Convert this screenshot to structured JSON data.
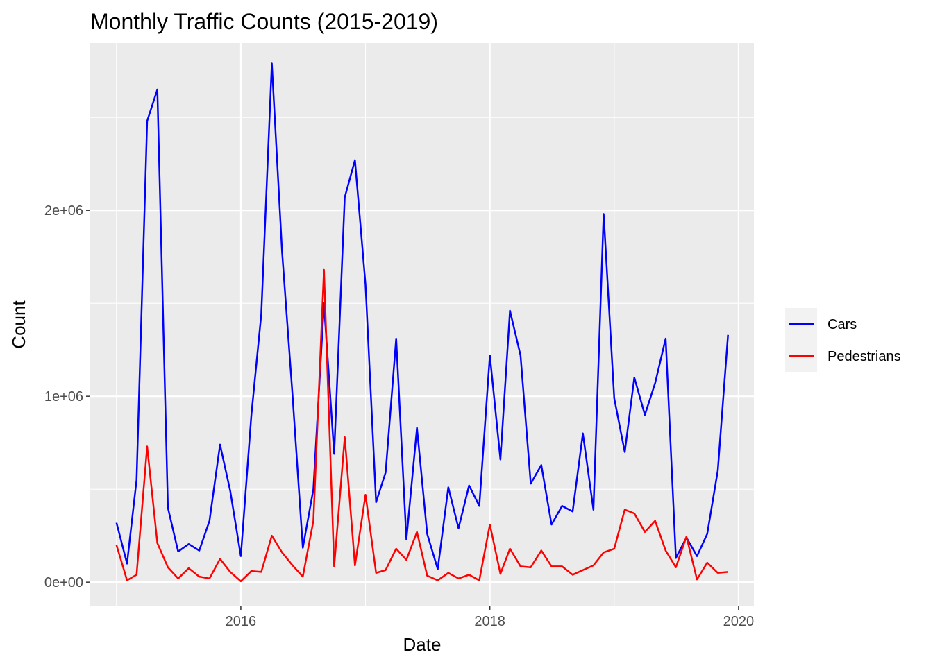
{
  "chart_data": {
    "type": "line",
    "title": "Monthly Traffic Counts (2015-2019)",
    "xlabel": "Date",
    "ylabel": "Count",
    "x_ticks": [
      "2016",
      "2018",
      "2020"
    ],
    "y_ticks": [
      "0e+00",
      "1e+06",
      "2e+06"
    ],
    "xlim": [
      "2014-10-16",
      "2020-02-15"
    ],
    "ylim": [
      -130000,
      2900000
    ],
    "grid": true,
    "legend_position": "right",
    "x": [
      "2015-01",
      "2015-02",
      "2015-03",
      "2015-04",
      "2015-05",
      "2015-06",
      "2015-07",
      "2015-08",
      "2015-09",
      "2015-10",
      "2015-11",
      "2015-12",
      "2016-01",
      "2016-02",
      "2016-03",
      "2016-04",
      "2016-05",
      "2016-06",
      "2016-07",
      "2016-08",
      "2016-09",
      "2016-10",
      "2016-11",
      "2016-12",
      "2017-01",
      "2017-02",
      "2017-03",
      "2017-04",
      "2017-05",
      "2017-06",
      "2017-07",
      "2017-08",
      "2017-09",
      "2017-10",
      "2017-11",
      "2017-12",
      "2018-01",
      "2018-02",
      "2018-03",
      "2018-04",
      "2018-05",
      "2018-06",
      "2018-07",
      "2018-08",
      "2018-09",
      "2018-10",
      "2018-11",
      "2018-12",
      "2019-01",
      "2019-02",
      "2019-03",
      "2019-04",
      "2019-05",
      "2019-06",
      "2019-07",
      "2019-08",
      "2019-09",
      "2019-10",
      "2019-11",
      "2019-12"
    ],
    "series": [
      {
        "name": "Cars",
        "color": "#0000ff",
        "values": [
          320000,
          100000,
          550000,
          2480000,
          2650000,
          400000,
          165000,
          205000,
          170000,
          330000,
          740000,
          490000,
          140000,
          900000,
          1440000,
          2790000,
          1780000,
          1000000,
          185000,
          500000,
          1500000,
          690000,
          2070000,
          2270000,
          1600000,
          430000,
          590000,
          1310000,
          230000,
          830000,
          260000,
          70000,
          510000,
          290000,
          520000,
          410000,
          1220000,
          660000,
          1460000,
          1220000,
          530000,
          630000,
          310000,
          410000,
          380000,
          800000,
          390000,
          1980000,
          990000,
          700000,
          1100000,
          900000,
          1070000,
          1310000,
          130000,
          240000,
          140000,
          260000,
          600000,
          1330000
        ]
      },
      {
        "name": "Pedestrians",
        "color": "#ff0000",
        "values": [
          200000,
          10000,
          40000,
          730000,
          210000,
          80000,
          20000,
          75000,
          30000,
          20000,
          125000,
          55000,
          5000,
          60000,
          55000,
          250000,
          160000,
          90000,
          30000,
          330000,
          1680000,
          85000,
          780000,
          90000,
          470000,
          50000,
          65000,
          180000,
          120000,
          270000,
          35000,
          10000,
          50000,
          20000,
          40000,
          10000,
          310000,
          45000,
          180000,
          85000,
          80000,
          170000,
          85000,
          85000,
          40000,
          65000,
          90000,
          160000,
          180000,
          390000,
          370000,
          270000,
          330000,
          170000,
          80000,
          245000,
          15000,
          105000,
          50000,
          55000
        ]
      }
    ]
  }
}
